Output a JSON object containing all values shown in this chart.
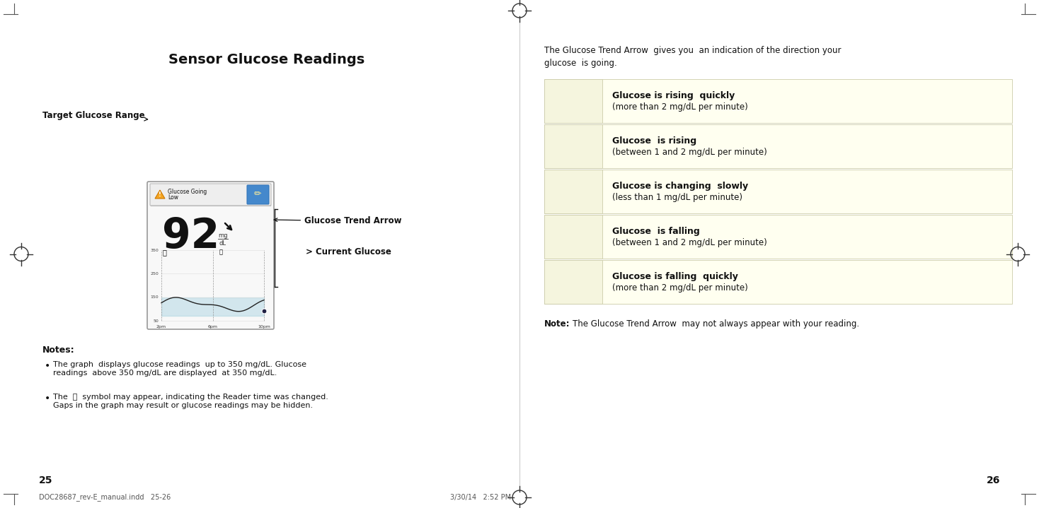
{
  "page_bg": "#ffffff",
  "left_page": {
    "title": "Sensor Glucose Readings",
    "notes_title": "Notes:",
    "notes": [
      "The graph  displays glucose readings  up to 350 mg/dL. Glucose\nreadings  above 350 mg/dL are displayed  at 350 mg/dL.",
      "The  ⌚  symbol may appear, indicating the Reader time was changed.\nGaps in the graph may result or glucose readings may be hidden."
    ],
    "page_num": "25",
    "footer": "DOC28687_rev-E_manual.indd   25-26",
    "footer_right": "3/30/14   2:52 PM"
  },
  "right_page": {
    "intro_line1": "The Glucose Trend Arrow  gives you  an indication of the direction your",
    "intro_line2": "glucose  is going.",
    "table_bg": "#fffff0",
    "table_border": "#ccccaa",
    "rows": [
      {
        "bold": "Glucose is rising  quickly",
        "normal": "(more than 2 mg/dL per minute)"
      },
      {
        "bold": "Glucose  is rising",
        "normal": "(between 1 and 2 mg/dL per minute)"
      },
      {
        "bold": "Glucose is changing  slowly",
        "normal": "(less than 1 mg/dL per minute)"
      },
      {
        "bold": "Glucose  is falling",
        "normal": "(between 1 and 2 mg/dL per minute)"
      },
      {
        "bold": "Glucose is falling  quickly",
        "normal": "(more than 2 mg/dL per minute)"
      }
    ],
    "note": "The Glucose Trend Arrow  may not always appear with your reading.",
    "note_bold": "Note:",
    "page_num": "26"
  },
  "crosshair_color": "#333333",
  "page_line_color": "#333333"
}
